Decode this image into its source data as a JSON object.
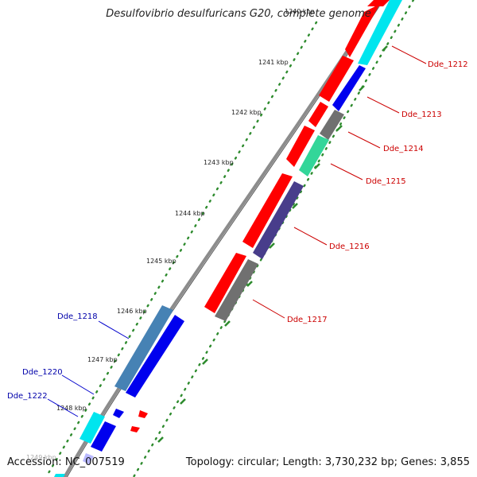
{
  "title": "Desulfovibrio desulfuricans G20, complete genome",
  "footer": {
    "accession": "Accession: NC_007519",
    "summary": "Topology: circular; Length: 3,730,232 bp; Genes: 3,855"
  },
  "colors": {
    "backbone": "#8c8c8c",
    "tick_dots": "#2e8b2e",
    "forward_label": "#cc0000",
    "reverse_label": "#0000aa"
  },
  "ticks": [
    {
      "label": "1240 kbp"
    },
    {
      "label": "1241 kbp"
    },
    {
      "label": "1242 kbp"
    },
    {
      "label": "1243 kbp"
    },
    {
      "label": "1244 kbp"
    },
    {
      "label": "1245 kbp"
    },
    {
      "label": "1246 kbp"
    },
    {
      "label": "1247 kbp"
    },
    {
      "label": "1248 kbp"
    },
    {
      "label": "1249 kbp"
    }
  ],
  "gene_labels_forward": [
    "Dde_1212",
    "Dde_1213",
    "Dde_1214",
    "Dde_1215",
    "Dde_1216",
    "Dde_1217"
  ],
  "gene_labels_reverse": [
    "Dde_1218",
    "Dde_1220",
    "Dde_1222"
  ],
  "genes": [
    {
      "strand": "forward",
      "color": "#ff0000",
      "icon": "arrow-right"
    },
    {
      "strand": "forward",
      "color": "#00e5ee",
      "icon": "arrow-right"
    },
    {
      "strand": "forward",
      "color": "#0000ee",
      "icon": "arrow-right"
    },
    {
      "strand": "forward",
      "color": "#707070",
      "icon": "arrow-right"
    },
    {
      "strand": "forward",
      "color": "#33d699",
      "icon": "arrow-right"
    },
    {
      "strand": "forward",
      "color": "#483d8b",
      "icon": "arrow-right"
    },
    {
      "strand": "forward",
      "color": "#707070",
      "icon": "arrow-right"
    },
    {
      "strand": "reverse",
      "color": "#4682b4",
      "icon": "arrow-left"
    },
    {
      "strand": "reverse",
      "color": "#0000ee",
      "icon": "arrow-left"
    },
    {
      "strand": "reverse",
      "color": "#00e5ee",
      "icon": "arrow-left"
    }
  ]
}
